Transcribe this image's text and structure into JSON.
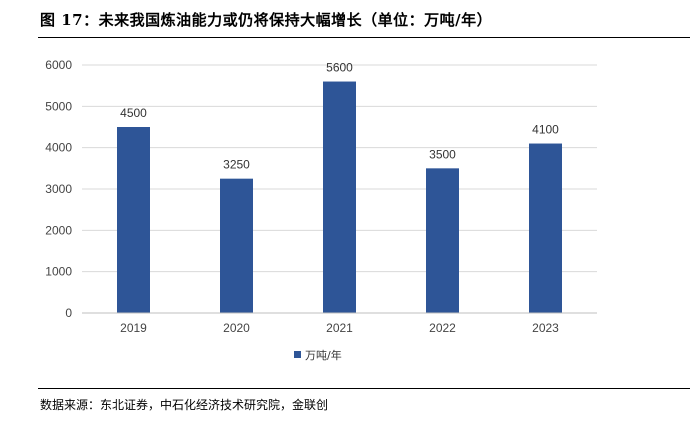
{
  "figure": {
    "title": "图 17：未来我国炼油能力或仍将保持大幅增长（单位：万吨/年）",
    "source": "数据来源：东北证券，中石化经济技术研究院，金联创"
  },
  "colors": {
    "bar": "#2E5597",
    "grid": "#d9d9d9",
    "axis": "#bfbfbf"
  },
  "chart_data": {
    "type": "bar",
    "title": "",
    "xlabel": "",
    "ylabel": "",
    "categories": [
      "2019",
      "2020",
      "2021",
      "2022",
      "2023"
    ],
    "series": [
      {
        "name": "万吨/年",
        "values": [
          4500,
          3250,
          5600,
          3500,
          4100
        ]
      }
    ],
    "data_labels": [
      "4500",
      "3250",
      "5600",
      "3500",
      "4100"
    ],
    "yticks": [
      "0",
      "1000",
      "2000",
      "3000",
      "4000",
      "5000",
      "6000"
    ],
    "ylim": [
      0,
      6000
    ],
    "grid": true,
    "legend": "bottom-center"
  }
}
